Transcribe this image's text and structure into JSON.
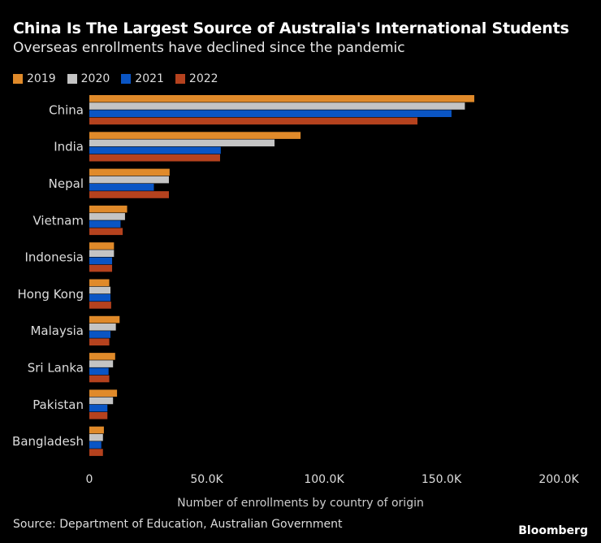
{
  "title": "China Is The Largest Source of Australia's International Students",
  "subtitle": "Overseas enrollments have declined since the pandemic",
  "source": "Source: Department of Education, Australian Government",
  "logo": "Bloomberg",
  "chart_data": {
    "type": "bar",
    "orientation": "horizontal",
    "xlabel": "Number of enrollments by country of origin",
    "xlim": [
      0,
      200000
    ],
    "xticks": [
      0,
      50000,
      100000,
      150000,
      200000
    ],
    "xtick_labels": [
      "0",
      "50.0K",
      "100.0K",
      "150.0K",
      "200.0K"
    ],
    "grid": false,
    "legend_placement": "top-left",
    "categories": [
      "China",
      "India",
      "Nepal",
      "Vietnam",
      "Indonesia",
      "Hong Kong",
      "Malaysia",
      "Sri Lanka",
      "Pakistan",
      "Bangladesh"
    ],
    "series": [
      {
        "name": "2019",
        "color": "#e08a2a",
        "values": [
          164000,
          90000,
          34200,
          16100,
          10500,
          8500,
          12900,
          11000,
          11800,
          6200
        ]
      },
      {
        "name": "2020",
        "color": "#c4c4c4",
        "values": [
          160000,
          78900,
          33900,
          15200,
          10500,
          9000,
          11300,
          10100,
          10100,
          5800
        ]
      },
      {
        "name": "2021",
        "color": "#0a55c4",
        "values": [
          154300,
          56000,
          27500,
          13300,
          9700,
          9000,
          9000,
          8200,
          7700,
          5100
        ]
      },
      {
        "name": "2022",
        "color": "#b5421e",
        "values": [
          139800,
          55700,
          33900,
          14200,
          9700,
          9300,
          8500,
          8500,
          7700,
          5800
        ]
      }
    ]
  }
}
